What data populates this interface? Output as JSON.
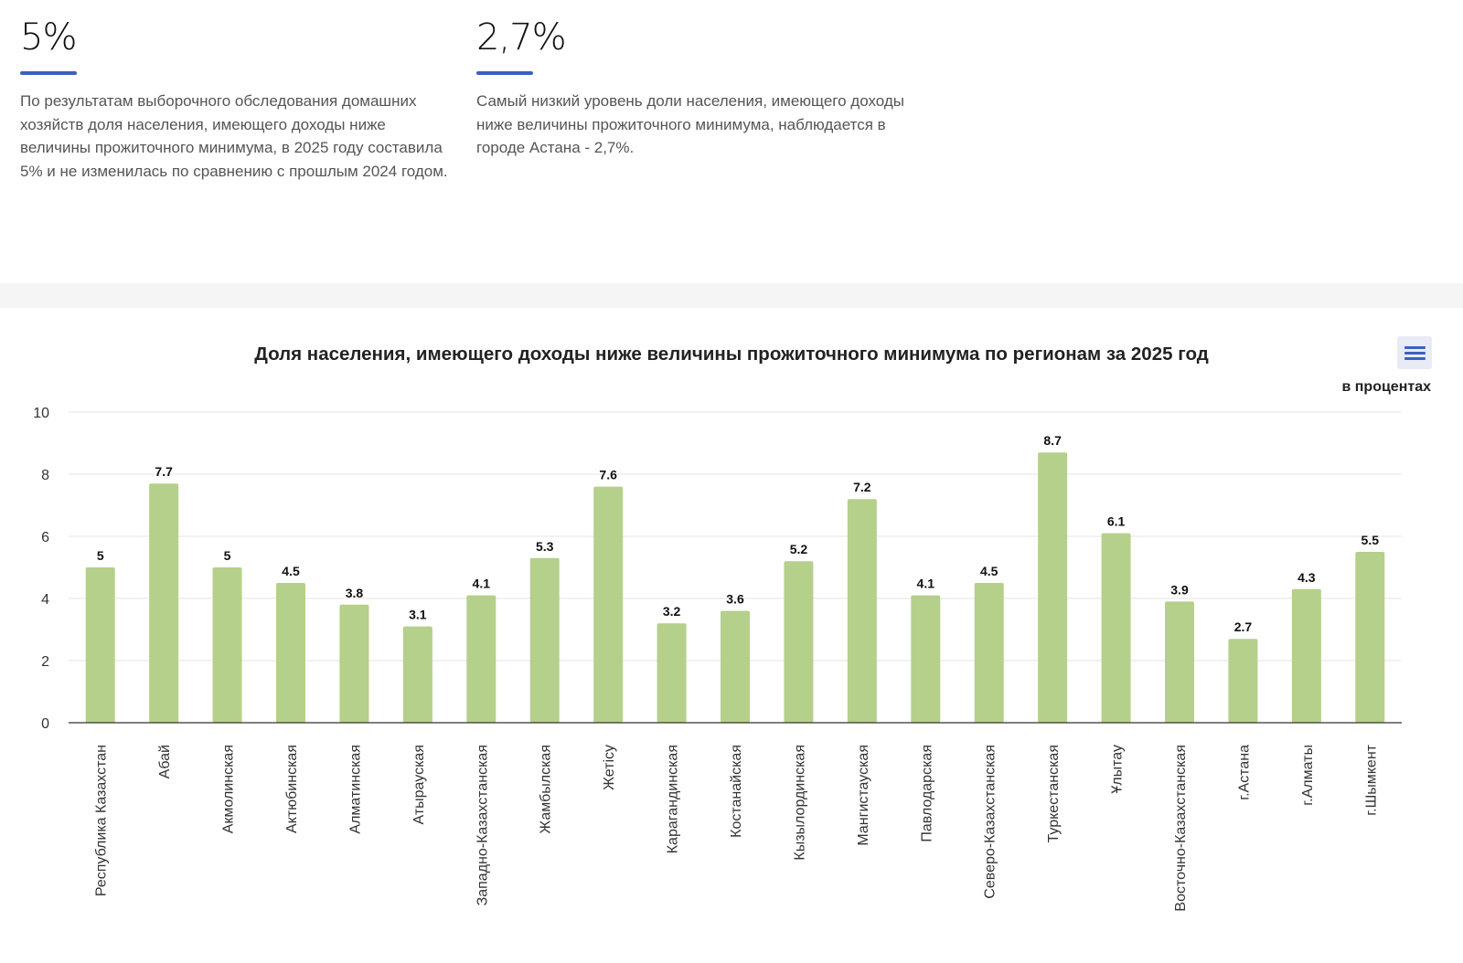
{
  "stats": [
    {
      "value": "5%",
      "text": "По результатам выборочного обследования домашних хозяйств доля населения, имеющего доходы ниже величины прожиточного минимума, в 2025 году составила 5% и не изменилась по сравнению с прошлым 2024 годом."
    },
    {
      "value": "2,7%",
      "text": "Самый низкий уровень доли населения, имеющего доходы ниже величины прожиточного минимума, наблюдается в городе Астана - 2,7%."
    }
  ],
  "chart_data": {
    "type": "bar",
    "title": "Доля населения, имеющего доходы ниже величины прожиточного минимума по регионам за 2025 год",
    "units": "в процентах",
    "ylim": [
      0,
      10
    ],
    "yticks": [
      0,
      2,
      4,
      6,
      8,
      10
    ],
    "grid": true,
    "bar_color": "#b5d08a",
    "categories": [
      "Республика Казахстан",
      "Абай",
      "Акмолинская",
      "Актюбинская",
      "Алматинская",
      "Атырауская",
      "Западно-Казахстанская",
      "Жамбылская",
      "Жетісу",
      "Карагандинская",
      "Костанайская",
      "Кызылординская",
      "Мангистауская",
      "Павлодарская",
      "Северо-Казахстанская",
      "Туркестанская",
      "Ұлытау",
      "Восточно-Казахстанская",
      "г.Астана",
      "г.Алматы",
      "г.Шымкент"
    ],
    "values": [
      5,
      7.7,
      5,
      4.5,
      3.8,
      3.1,
      4.1,
      5.3,
      7.6,
      3.2,
      3.6,
      5.2,
      7.2,
      4.1,
      4.5,
      8.7,
      6.1,
      3.9,
      2.7,
      4.3,
      5.5
    ]
  }
}
